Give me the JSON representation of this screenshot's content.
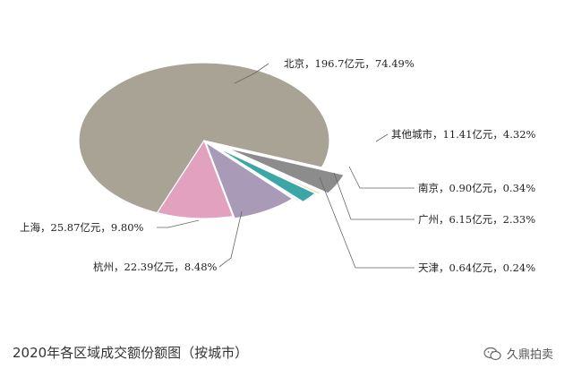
{
  "chart_data": {
    "type": "pie",
    "title": "2020年各区域成交额份额图（按城市）",
    "slices": [
      {
        "city": "北京",
        "value": 196.7,
        "percent": 74.49,
        "label": "北京，196.7亿元，74.49%",
        "color": "#a8a394"
      },
      {
        "city": "其他城市",
        "value": 11.41,
        "percent": 4.32,
        "label": "其他城市，11.41亿元，4.32%",
        "color": "#8c8c8c"
      },
      {
        "city": "南京",
        "value": 0.9,
        "percent": 0.34,
        "label": "南京，0.90亿元，0.34%",
        "color": "#d9c88a"
      },
      {
        "city": "广州",
        "value": 6.15,
        "percent": 2.33,
        "label": "广州，6.15亿元，2.33%",
        "color": "#3aa6a6"
      },
      {
        "city": "天津",
        "value": 0.64,
        "percent": 0.24,
        "label": "天津，0.64亿元，0.24%",
        "color": "#9fb8d6"
      },
      {
        "city": "杭州",
        "value": 22.39,
        "percent": 8.48,
        "label": "杭州，22.39亿元，8.48%",
        "color": "#a99ab8"
      },
      {
        "city": "上海",
        "value": 25.87,
        "percent": 9.8,
        "label": "上海，25.87亿元，9.80%",
        "color": "#e2a2bf"
      }
    ],
    "legend": "none"
  },
  "watermark": {
    "text": "久鼎拍卖",
    "icon": "wechat-icon"
  }
}
